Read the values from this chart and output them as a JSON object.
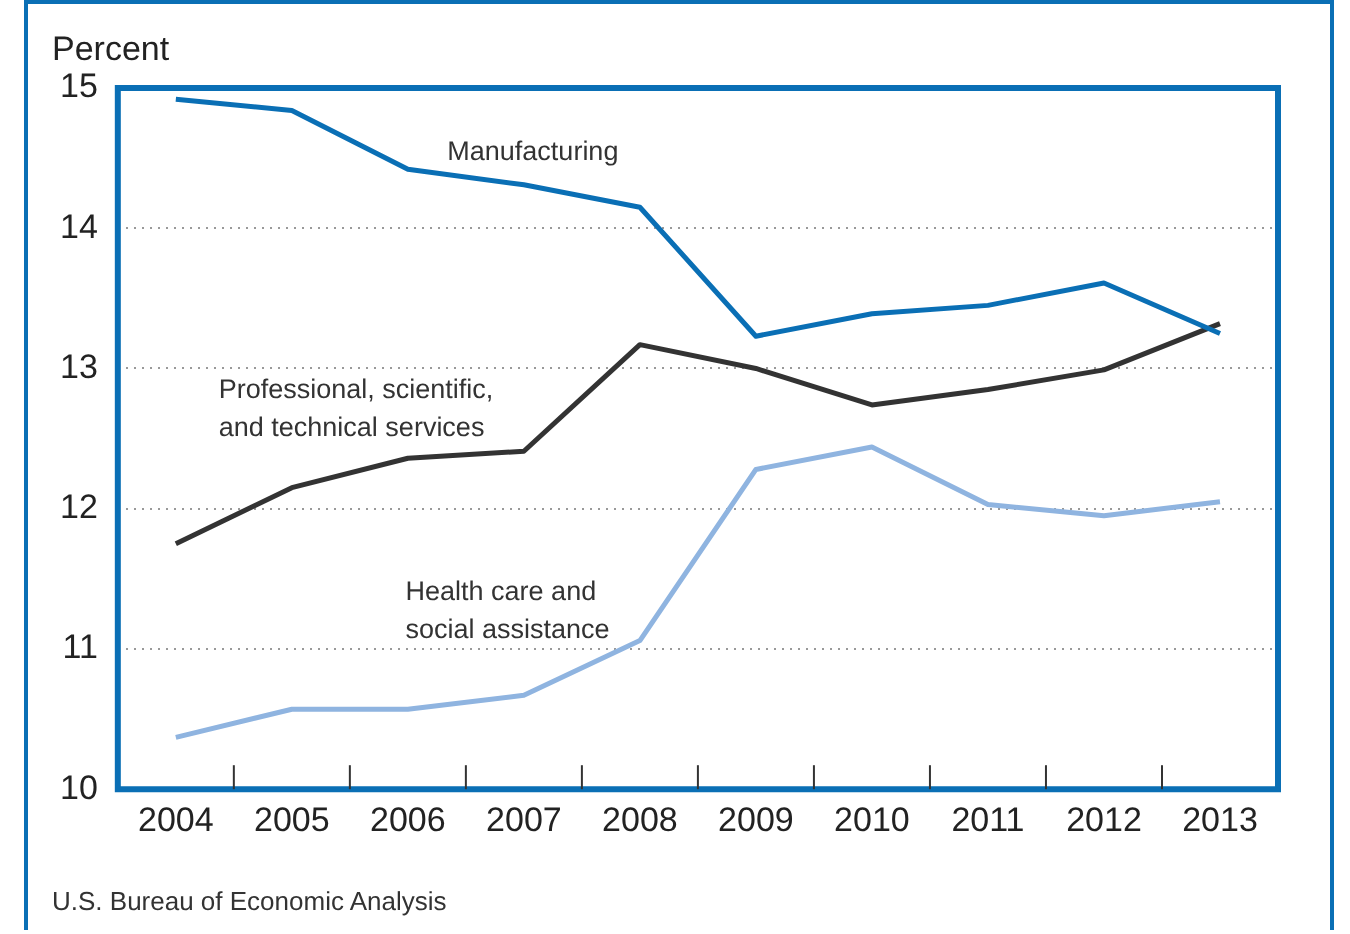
{
  "chart_data": {
    "type": "line",
    "ylabel": "Percent",
    "categories": [
      "2004",
      "2005",
      "2006",
      "2007",
      "2008",
      "2009",
      "2010",
      "2011",
      "2012",
      "2013"
    ],
    "series": [
      {
        "name": "Manufacturing",
        "color": "#0a6fb5",
        "values": [
          14.92,
          14.84,
          14.42,
          14.31,
          14.15,
          13.23,
          13.39,
          13.45,
          13.61,
          13.25
        ]
      },
      {
        "name": "Professional, scientific,\nand technical services",
        "color": "#333333",
        "values": [
          11.75,
          12.15,
          12.36,
          12.41,
          13.17,
          13.0,
          12.74,
          12.85,
          12.99,
          13.32
        ]
      },
      {
        "name": "Health care and\nsocial assistance",
        "color": "#8fb4e0",
        "values": [
          10.37,
          10.57,
          10.57,
          10.67,
          11.06,
          12.28,
          12.44,
          12.03,
          11.95,
          12.05
        ]
      }
    ],
    "ylim": [
      10,
      15
    ],
    "yticks": [
      10,
      11,
      12,
      13,
      14,
      15
    ],
    "grid": "y",
    "legend": false,
    "marker": "none",
    "line_style": "solid",
    "annotations": [
      "U.S. Bureau of Economic Analysis"
    ]
  }
}
